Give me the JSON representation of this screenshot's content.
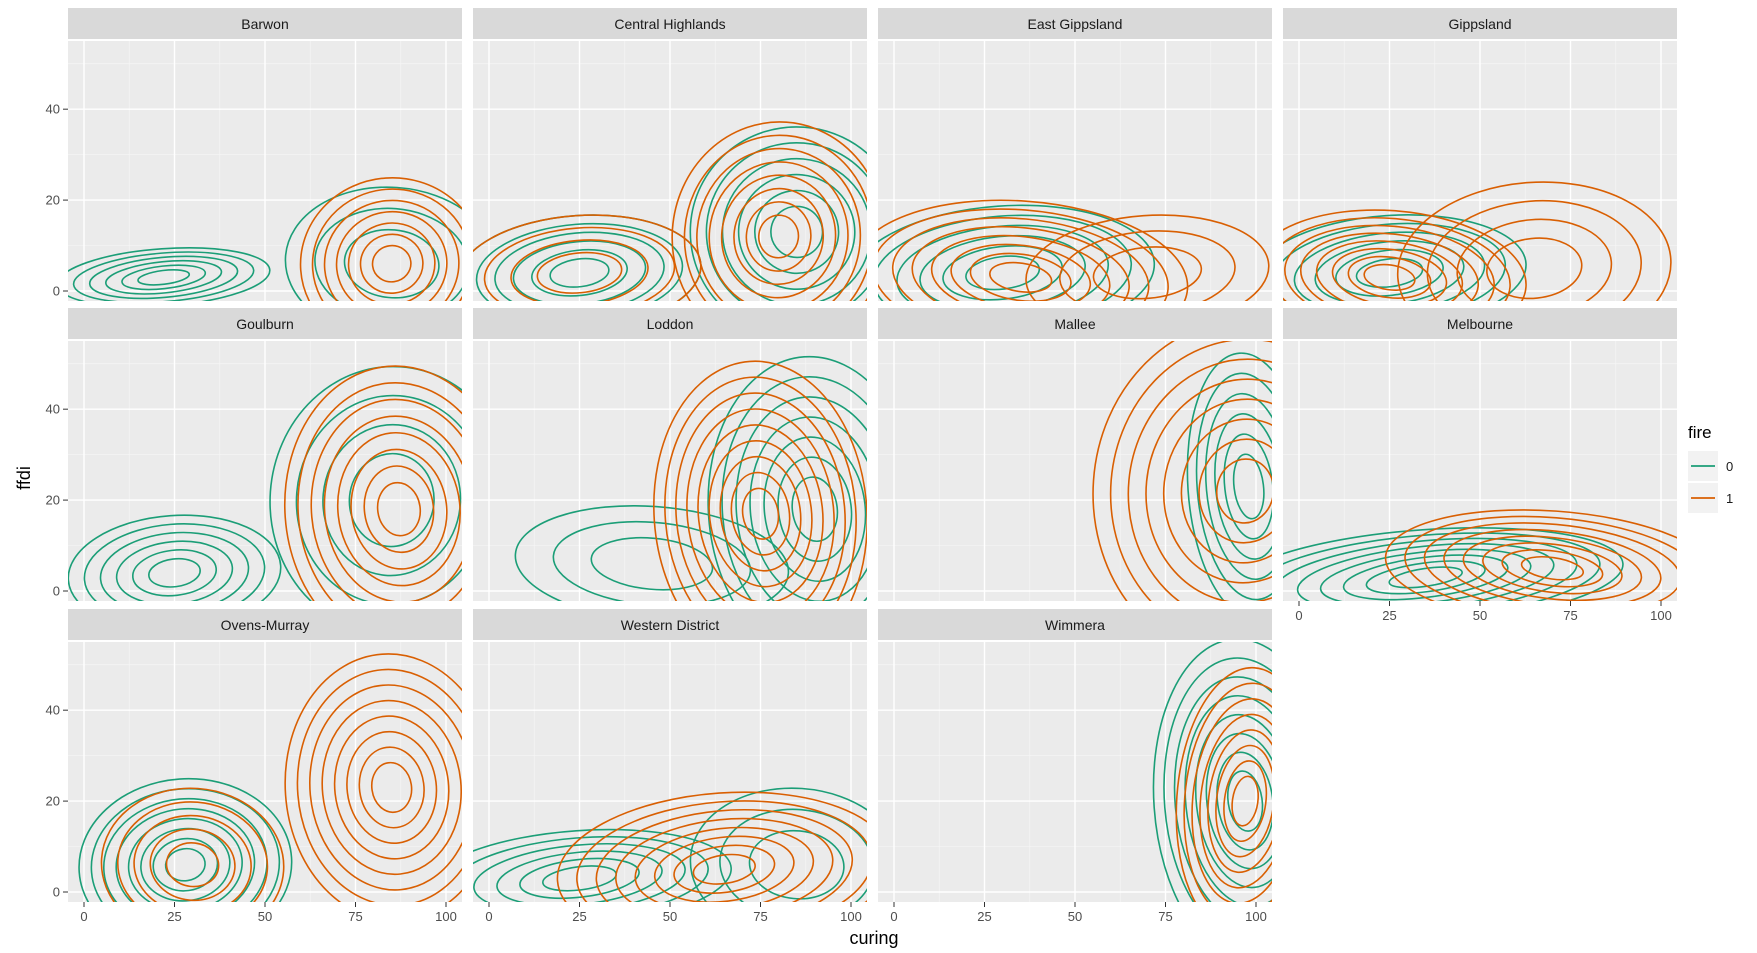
{
  "chart_data": {
    "type": "contour",
    "subtype": "faceted 2D density contours",
    "xlabel": "curing",
    "ylabel": "ffdi",
    "xlim": [
      0,
      100
    ],
    "ylim": [
      0,
      55
    ],
    "x_ticks": [
      0,
      25,
      50,
      75,
      100
    ],
    "y_ticks": [
      0,
      20,
      40
    ],
    "grid": true,
    "legend": {
      "title": "fire",
      "position": "right",
      "entries": [
        {
          "label": "0",
          "color": "#1b9e77"
        },
        {
          "label": "1",
          "color": "#d95f02"
        }
      ]
    },
    "facets": [
      {
        "name": "Barwon",
        "density_peaks": [
          {
            "series": "0",
            "x": 22,
            "y": 3,
            "sx": 14,
            "sy": 3,
            "levels": 6
          },
          {
            "series": "0",
            "x": 85,
            "y": 6,
            "sx": 14,
            "sy": 8,
            "levels": 3
          },
          {
            "series": "1",
            "x": 85,
            "y": 6,
            "sx": 12,
            "sy": 9,
            "levels": 7
          }
        ]
      },
      {
        "name": "Central Highlands",
        "density_peaks": [
          {
            "series": "0",
            "x": 25,
            "y": 4,
            "sx": 16,
            "sy": 6,
            "levels": 6
          },
          {
            "series": "0",
            "x": 85,
            "y": 13,
            "sx": 14,
            "sy": 11,
            "levels": 6
          },
          {
            "series": "1",
            "x": 25,
            "y": 4,
            "sx": 16,
            "sy": 6,
            "levels": 4
          },
          {
            "series": "1",
            "x": 80,
            "y": 12,
            "sx": 14,
            "sy": 12,
            "levels": 8
          }
        ]
      },
      {
        "name": "East Gippsland",
        "density_peaks": [
          {
            "series": "0",
            "x": 30,
            "y": 4,
            "sx": 20,
            "sy": 7,
            "levels": 6
          },
          {
            "series": "1",
            "x": 35,
            "y": 3,
            "sx": 22,
            "sy": 8,
            "levels": 8
          },
          {
            "series": "1",
            "x": 70,
            "y": 4,
            "sx": 16,
            "sy": 6,
            "levels": 3
          }
        ]
      },
      {
        "name": "Gippsland",
        "density_peaks": [
          {
            "series": "0",
            "x": 25,
            "y": 4,
            "sx": 18,
            "sy": 6,
            "levels": 6
          },
          {
            "series": "1",
            "x": 25,
            "y": 3,
            "sx": 18,
            "sy": 7,
            "levels": 8
          },
          {
            "series": "1",
            "x": 65,
            "y": 5,
            "sx": 18,
            "sy": 9,
            "levels": 4
          }
        ]
      },
      {
        "name": "Goulburn",
        "density_peaks": [
          {
            "series": "0",
            "x": 25,
            "y": 4,
            "sx": 14,
            "sy": 6,
            "levels": 6
          },
          {
            "series": "0",
            "x": 85,
            "y": 20,
            "sx": 16,
            "sy": 14,
            "levels": 4
          },
          {
            "series": "1",
            "x": 87,
            "y": 18,
            "sx": 15,
            "sy": 15,
            "levels": 8
          }
        ]
      },
      {
        "name": "Loddon",
        "density_peaks": [
          {
            "series": "0",
            "x": 90,
            "y": 18,
            "sx": 14,
            "sy": 16,
            "levels": 7
          },
          {
            "series": "0",
            "x": 45,
            "y": 6,
            "sx": 18,
            "sy": 6,
            "levels": 3
          },
          {
            "series": "1",
            "x": 75,
            "y": 17,
            "sx": 14,
            "sy": 16,
            "levels": 9
          }
        ]
      },
      {
        "name": "Mallee",
        "density_peaks": [
          {
            "series": "0",
            "x": 98,
            "y": 23,
            "sx": 8,
            "sy": 14,
            "levels": 6
          },
          {
            "series": "1",
            "x": 97,
            "y": 22,
            "sx": 20,
            "sy": 18,
            "levels": 8
          }
        ]
      },
      {
        "name": "Melbourne",
        "density_peaks": [
          {
            "series": "0",
            "x": 35,
            "y": 3,
            "sx": 26,
            "sy": 5,
            "levels": 8
          },
          {
            "series": "1",
            "x": 70,
            "y": 5,
            "sx": 22,
            "sy": 6,
            "levels": 8
          }
        ]
      },
      {
        "name": "Ovens-Murray",
        "density_peaks": [
          {
            "series": "0",
            "x": 28,
            "y": 6,
            "sx": 14,
            "sy": 9,
            "levels": 8
          },
          {
            "series": "1",
            "x": 30,
            "y": 6,
            "sx": 12,
            "sy": 8,
            "levels": 5
          },
          {
            "series": "1",
            "x": 85,
            "y": 23,
            "sx": 14,
            "sy": 14,
            "levels": 8
          }
        ]
      },
      {
        "name": "Western District",
        "density_peaks": [
          {
            "series": "0",
            "x": 25,
            "y": 3,
            "sx": 20,
            "sy": 5,
            "levels": 6
          },
          {
            "series": "0",
            "x": 85,
            "y": 6,
            "sx": 14,
            "sy": 8,
            "levels": 3
          },
          {
            "series": "1",
            "x": 65,
            "y": 5,
            "sx": 22,
            "sy": 8,
            "levels": 8
          }
        ]
      },
      {
        "name": "Wimmera",
        "density_peaks": [
          {
            "series": "0",
            "x": 97,
            "y": 20,
            "sx": 12,
            "sy": 17,
            "levels": 8
          },
          {
            "series": "1",
            "x": 97,
            "y": 20,
            "sx": 9,
            "sy": 14,
            "levels": 8
          }
        ]
      }
    ]
  }
}
